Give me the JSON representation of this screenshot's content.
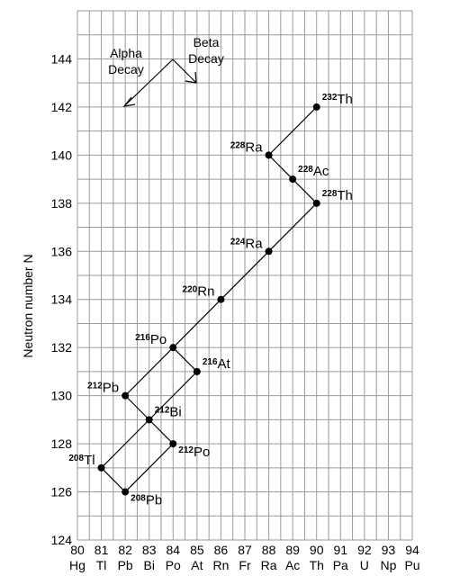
{
  "chart_data": {
    "type": "diagram",
    "ylabel": "Neutron number N",
    "xlim": [
      80,
      94
    ],
    "ylim": [
      124,
      146
    ],
    "x_ticks": [
      {
        "z": 80,
        "symbol": "Hg"
      },
      {
        "z": 81,
        "symbol": "Tl"
      },
      {
        "z": 82,
        "symbol": "Pb"
      },
      {
        "z": 83,
        "symbol": "Bi"
      },
      {
        "z": 84,
        "symbol": "Po"
      },
      {
        "z": 85,
        "symbol": "At"
      },
      {
        "z": 86,
        "symbol": "Rn"
      },
      {
        "z": 87,
        "symbol": "Fr"
      },
      {
        "z": 88,
        "symbol": "Ra"
      },
      {
        "z": 89,
        "symbol": "Ac"
      },
      {
        "z": 90,
        "symbol": "Th"
      },
      {
        "z": 91,
        "symbol": "Pa"
      },
      {
        "z": 92,
        "symbol": "U"
      },
      {
        "z": 93,
        "symbol": "Np"
      },
      {
        "z": 94,
        "symbol": "Pu"
      }
    ],
    "y_ticks": [
      124,
      126,
      128,
      130,
      132,
      134,
      136,
      138,
      140,
      142,
      144
    ],
    "legend": {
      "alpha_label_line1": "Alpha",
      "alpha_label_line2": "Decay",
      "beta_label_line1": "Beta",
      "beta_label_line2": "Decay"
    },
    "nuclides": [
      {
        "id": "th232",
        "mass": "232",
        "symbol": "Th",
        "z": 90,
        "n": 142,
        "label_pos": "right"
      },
      {
        "id": "ra228",
        "mass": "228",
        "symbol": "Ra",
        "z": 88,
        "n": 140,
        "label_pos": "left"
      },
      {
        "id": "ac228",
        "mass": "228",
        "symbol": "Ac",
        "z": 89,
        "n": 139,
        "label_pos": "right"
      },
      {
        "id": "th228",
        "mass": "228",
        "symbol": "Th",
        "z": 90,
        "n": 138,
        "label_pos": "right"
      },
      {
        "id": "ra224",
        "mass": "224",
        "symbol": "Ra",
        "z": 88,
        "n": 136,
        "label_pos": "left"
      },
      {
        "id": "rn220",
        "mass": "220",
        "symbol": "Rn",
        "z": 86,
        "n": 134,
        "label_pos": "left"
      },
      {
        "id": "po216",
        "mass": "216",
        "symbol": "Po",
        "z": 84,
        "n": 132,
        "label_pos": "left"
      },
      {
        "id": "at216",
        "mass": "216",
        "symbol": "At",
        "z": 85,
        "n": 131,
        "label_pos": "right"
      },
      {
        "id": "pb212",
        "mass": "212",
        "symbol": "Pb",
        "z": 82,
        "n": 130,
        "label_pos": "left"
      },
      {
        "id": "bi212",
        "mass": "212",
        "symbol": "Bi",
        "z": 83,
        "n": 129,
        "label_pos": "right"
      },
      {
        "id": "po212",
        "mass": "212",
        "symbol": "Po",
        "z": 84,
        "n": 128,
        "label_pos": "below-right"
      },
      {
        "id": "tl208",
        "mass": "208",
        "symbol": "Tl",
        "z": 81,
        "n": 127,
        "label_pos": "left"
      },
      {
        "id": "pb208",
        "mass": "208",
        "symbol": "Pb",
        "z": 82,
        "n": 126,
        "label_pos": "below-right"
      }
    ],
    "transitions": [
      {
        "from": "th232",
        "to": "ra228",
        "decay": "alpha"
      },
      {
        "from": "ra228",
        "to": "ac228",
        "decay": "beta"
      },
      {
        "from": "ac228",
        "to": "th228",
        "decay": "beta"
      },
      {
        "from": "th228",
        "to": "ra224",
        "decay": "alpha"
      },
      {
        "from": "ra224",
        "to": "rn220",
        "decay": "alpha"
      },
      {
        "from": "rn220",
        "to": "po216",
        "decay": "alpha"
      },
      {
        "from": "po216",
        "to": "pb212",
        "decay": "alpha"
      },
      {
        "from": "po216",
        "to": "at216",
        "decay": "beta"
      },
      {
        "from": "at216",
        "to": "bi212",
        "decay": "alpha"
      },
      {
        "from": "pb212",
        "to": "bi212",
        "decay": "beta"
      },
      {
        "from": "bi212",
        "to": "tl208",
        "decay": "alpha"
      },
      {
        "from": "bi212",
        "to": "po212",
        "decay": "beta"
      },
      {
        "from": "tl208",
        "to": "pb208",
        "decay": "beta"
      },
      {
        "from": "po212",
        "to": "pb208",
        "decay": "alpha"
      }
    ]
  }
}
